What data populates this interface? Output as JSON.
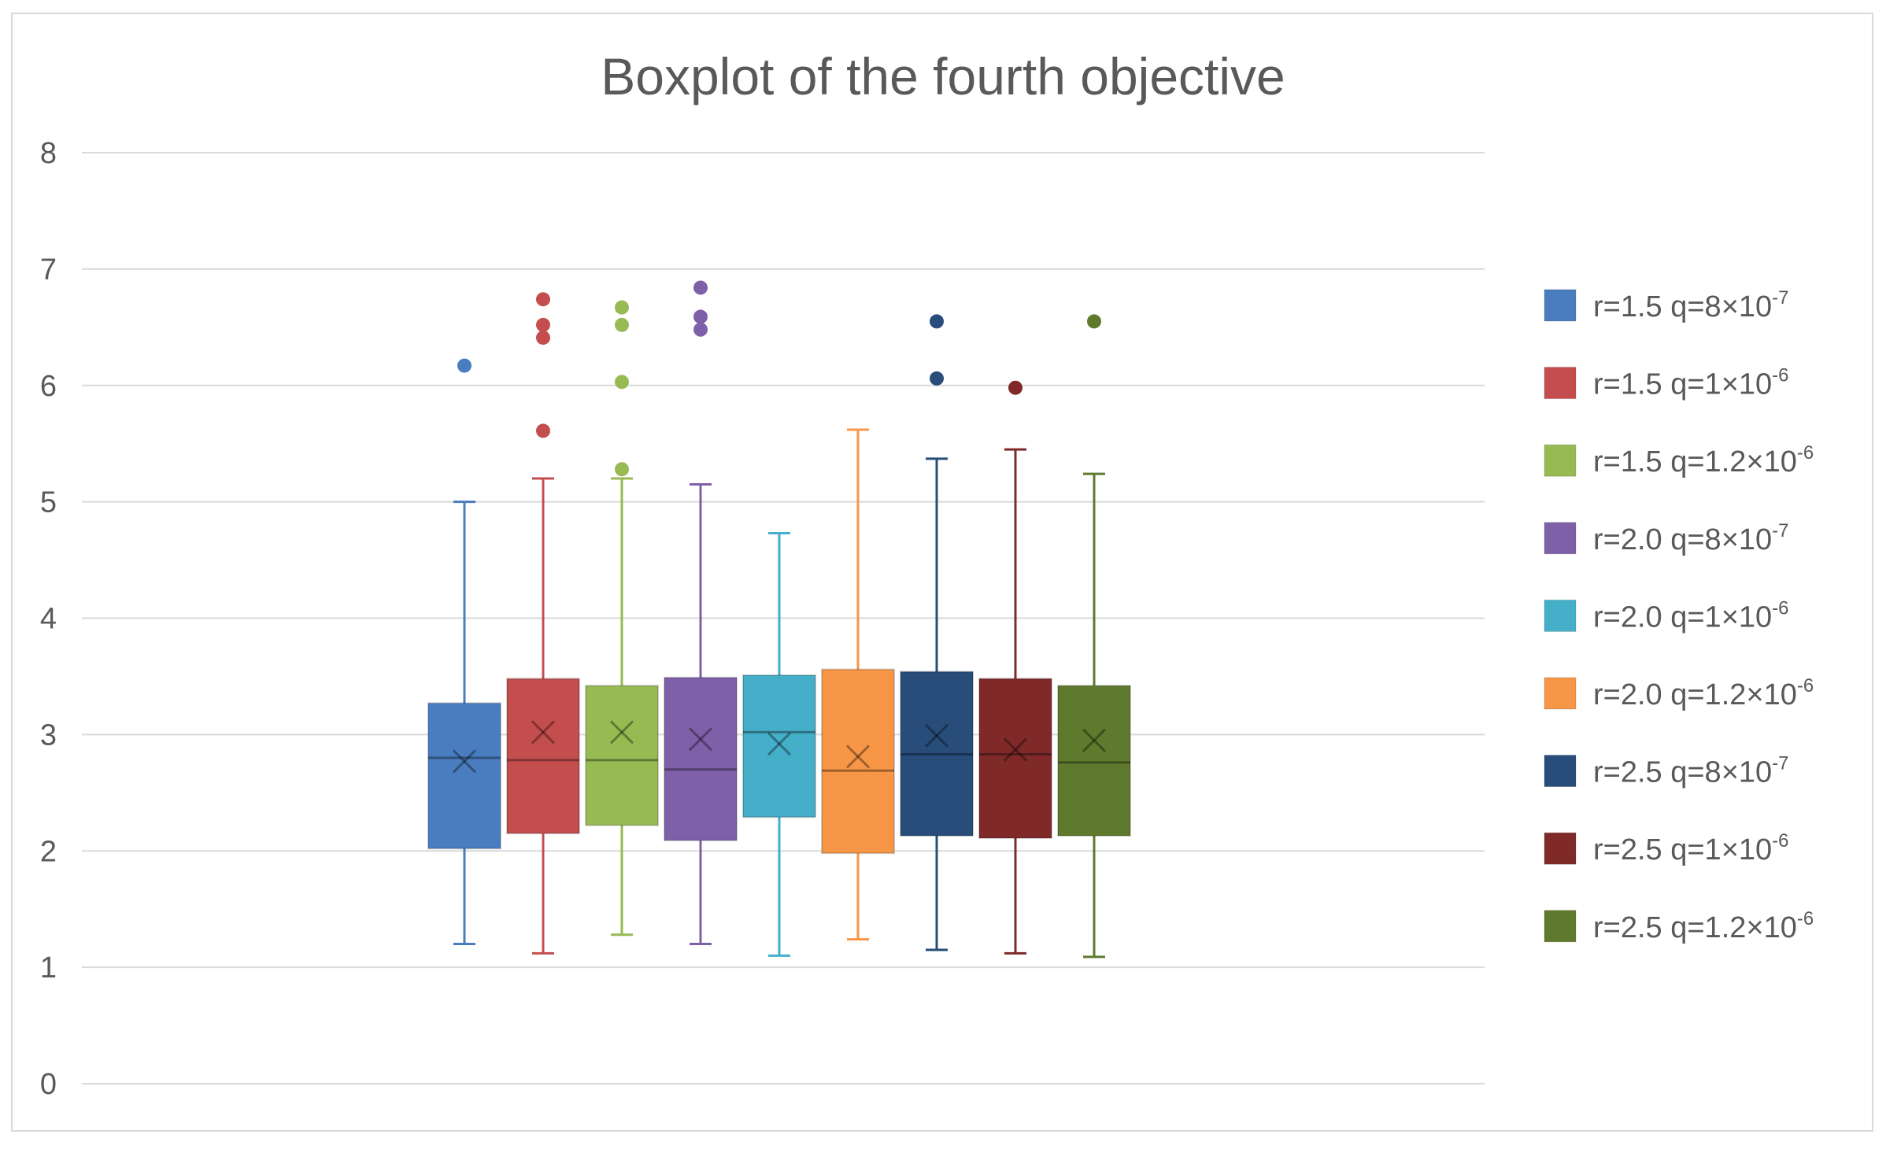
{
  "chart_data": {
    "type": "boxplot",
    "title": "Boxplot of the fourth objective",
    "xlabel": "",
    "ylabel": "",
    "ylim": [
      0,
      8
    ],
    "yticks": [
      "0",
      "1",
      "2",
      "3",
      "4",
      "5",
      "6",
      "7",
      "8"
    ],
    "grid": true,
    "legend_position": "right",
    "series": [
      {
        "name": "r=1.5 q=8×10-7",
        "label": {
          "base": "r=1.5 q=8×10",
          "exp": "-7"
        },
        "color": "#4a7dbf",
        "min": 1.2,
        "q1": 2.02,
        "median": 2.8,
        "q3": 3.27,
        "max": 5.0,
        "mean": 2.77,
        "outliers": [
          6.17
        ]
      },
      {
        "name": "r=1.5 q=1×10-6",
        "label": {
          "base": "r=1.5 q=1×10",
          "exp": "-6"
        },
        "color": "#c44e4e",
        "min": 1.12,
        "q1": 2.15,
        "median": 2.78,
        "q3": 3.48,
        "max": 5.2,
        "mean": 3.02,
        "outliers": [
          6.74,
          6.52,
          6.41,
          5.61
        ]
      },
      {
        "name": "r=1.5 q=1.2×10-6",
        "label": {
          "base": "r=1.5 q=1.2×10",
          "exp": "-6"
        },
        "color": "#97bb52",
        "min": 1.28,
        "q1": 2.22,
        "median": 2.78,
        "q3": 3.42,
        "max": 5.2,
        "mean": 3.02,
        "outliers": [
          6.67,
          6.52,
          6.03,
          5.28
        ]
      },
      {
        "name": "r=2.0 q=8×10-7",
        "label": {
          "base": "r=2.0 q=8×10",
          "exp": "-7"
        },
        "color": "#7e60a8",
        "min": 1.2,
        "q1": 2.09,
        "median": 2.7,
        "q3": 3.49,
        "max": 5.15,
        "mean": 2.96,
        "outliers": [
          6.84,
          6.59,
          6.48
        ]
      },
      {
        "name": "r=2.0 q=1×10-6",
        "label": {
          "base": "r=2.0 q=1×10",
          "exp": "-6"
        },
        "color": "#45aec9",
        "min": 1.1,
        "q1": 2.29,
        "median": 3.02,
        "q3": 3.51,
        "max": 4.73,
        "mean": 2.92,
        "outliers": []
      },
      {
        "name": "r=2.0 q=1.2×10-6",
        "label": {
          "base": "r=2.0 q=1.2×10",
          "exp": "-6"
        },
        "color": "#f79646",
        "min": 1.24,
        "q1": 1.98,
        "median": 2.69,
        "q3": 3.56,
        "max": 5.62,
        "mean": 2.81,
        "outliers": []
      },
      {
        "name": "r=2.5 q=8×10-7",
        "label": {
          "base": "r=2.5 q=8×10",
          "exp": "-7"
        },
        "color": "#284d7a",
        "min": 1.15,
        "q1": 2.13,
        "median": 2.83,
        "q3": 3.54,
        "max": 5.37,
        "mean": 2.99,
        "outliers": [
          6.55,
          6.06
        ]
      },
      {
        "name": "r=2.5 q=1×10-6",
        "label": {
          "base": "r=2.5 q=1×10",
          "exp": "-6"
        },
        "color": "#7f2929",
        "min": 1.12,
        "q1": 2.11,
        "median": 2.83,
        "q3": 3.48,
        "max": 5.45,
        "mean": 2.87,
        "outliers": [
          5.98
        ]
      },
      {
        "name": "r=2.5 q=1.2×10-6",
        "label": {
          "base": "r=2.5 q=1.2×10",
          "exp": "-6"
        },
        "color": "#5f7a2d",
        "min": 1.09,
        "q1": 2.13,
        "median": 2.76,
        "q3": 3.42,
        "max": 5.24,
        "mean": 2.95,
        "outliers": [
          6.55
        ]
      }
    ]
  },
  "colors": {
    "text": "#595959",
    "grid": "#d9d9d9",
    "border": "#d9d9d9"
  }
}
